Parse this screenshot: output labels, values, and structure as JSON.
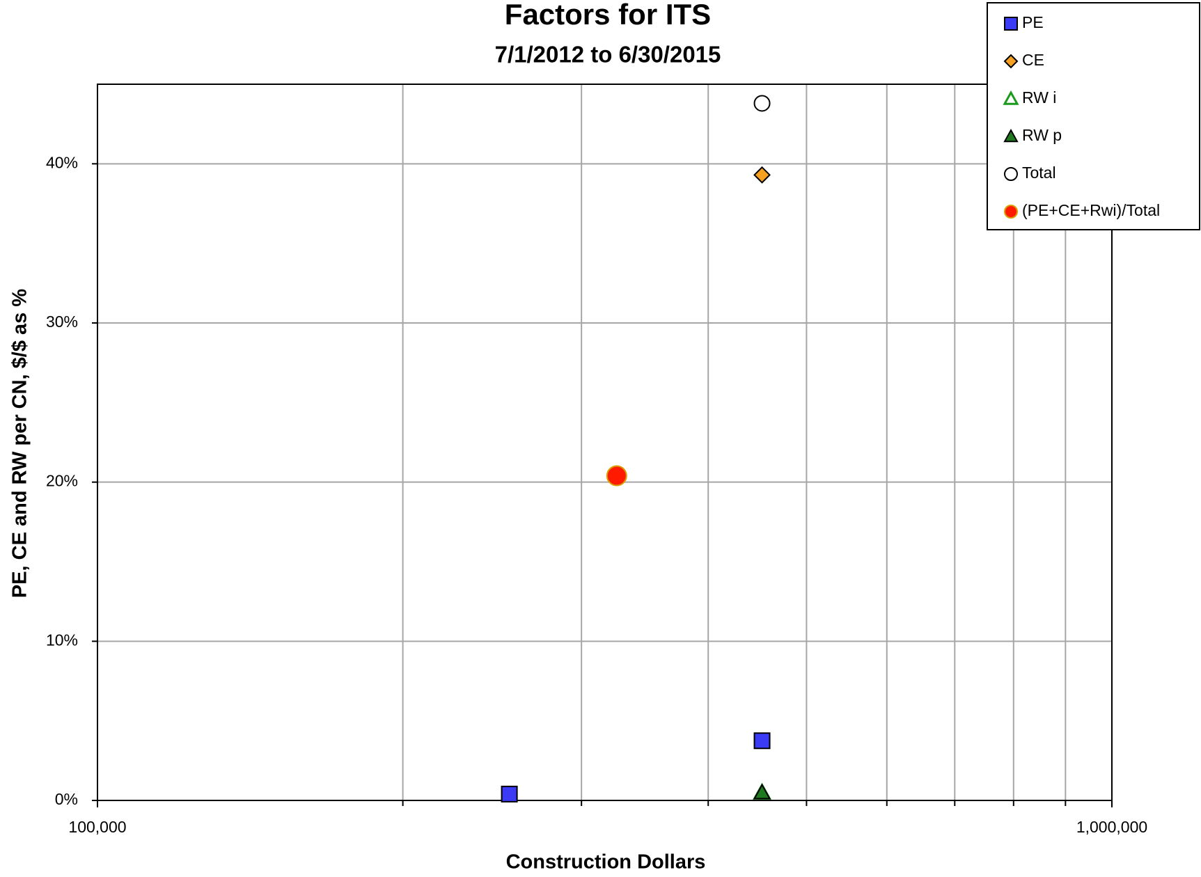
{
  "chart_data": {
    "type": "scatter",
    "title": "Factors for ITS",
    "subtitle": "7/1/2012 to 6/30/2015",
    "x_label": "Construction Dollars",
    "y_label": "PE, CE and RW per CN, $/$ as %",
    "xscale": "log",
    "xlim": [
      100000,
      1000000
    ],
    "xticks": [
      {
        "value": 100000,
        "label": "100,000"
      },
      {
        "value": 1000000,
        "label": "1,000,000"
      }
    ],
    "xminor": [
      200000,
      300000,
      400000,
      500000,
      600000,
      700000,
      800000,
      900000
    ],
    "ylim": [
      0,
      45
    ],
    "yticks": [
      {
        "value": 0,
        "label": "0%"
      },
      {
        "value": 10,
        "label": "10%"
      },
      {
        "value": 20,
        "label": "20%"
      },
      {
        "value": 30,
        "label": "30%"
      },
      {
        "value": 40,
        "label": "40%"
      }
    ],
    "grid": true,
    "legend": "top-right",
    "series": [
      {
        "name": "PE",
        "color": "#3b3bf5",
        "marker": "square",
        "x": [
          254700,
          452000
        ],
        "values": [
          0.4,
          3.75
        ]
      },
      {
        "name": "CE",
        "color": "#f5a020",
        "marker": "diamond",
        "x": [
          452000
        ],
        "values": [
          39.3
        ]
      },
      {
        "name": "RW i",
        "color": "#1a9a1a",
        "marker": "triangle-open",
        "x": [
          452000
        ],
        "values": [
          0.5
        ]
      },
      {
        "name": "RW p",
        "color": "#1f7a1f",
        "marker": "triangle",
        "x": [
          452000
        ],
        "values": [
          0.5
        ]
      },
      {
        "name": "Total",
        "color": "#ffffff",
        "marker": "circle-open",
        "x": [
          452000
        ],
        "values": [
          43.8
        ]
      },
      {
        "name": "(PE+CE+Rwi)/Total",
        "color": "#ff1a00",
        "marker": "circle",
        "x": [
          325000
        ],
        "values": [
          20.4
        ]
      }
    ]
  }
}
